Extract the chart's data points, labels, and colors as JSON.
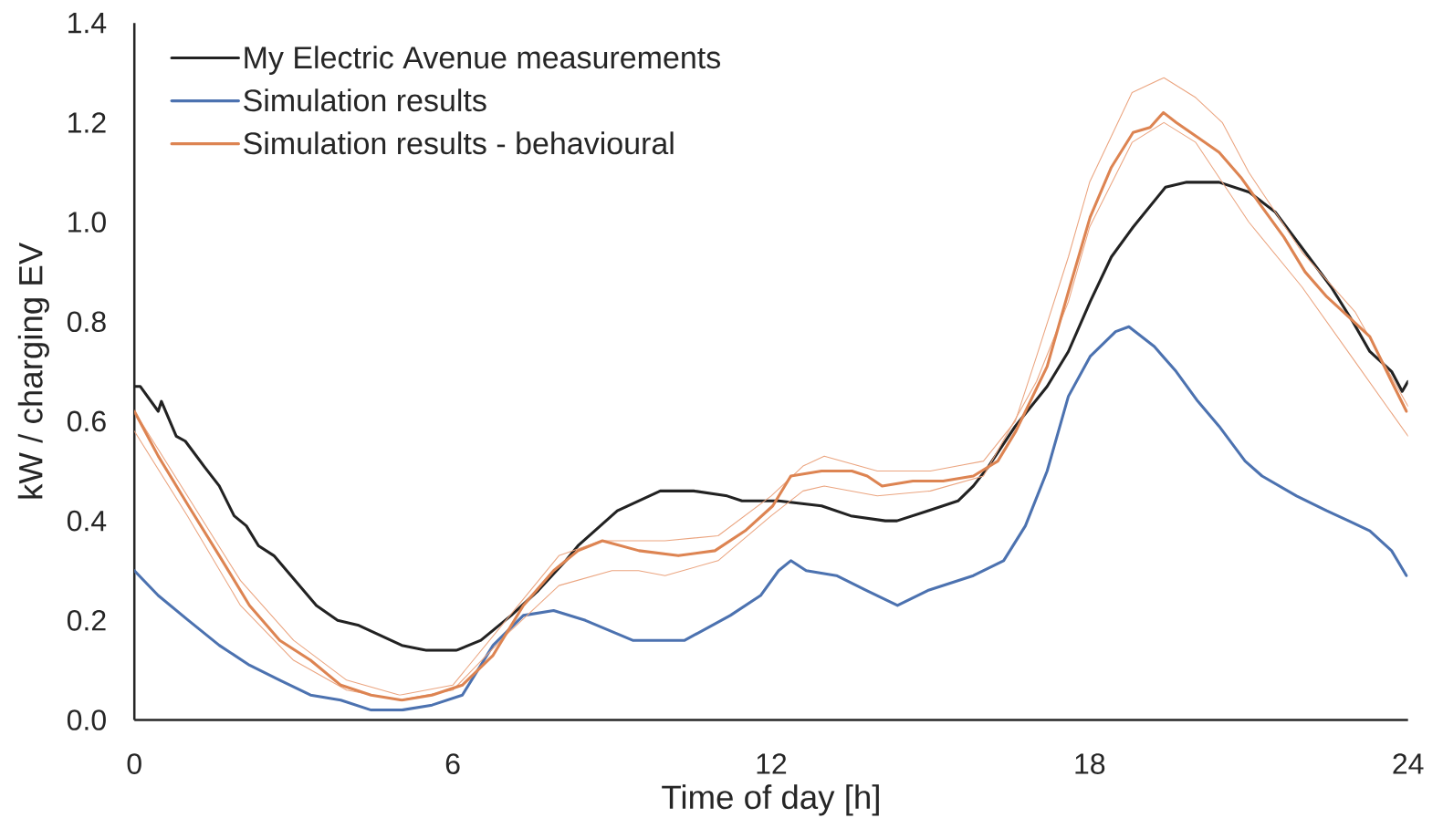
{
  "chart_data": {
    "type": "line",
    "xlabel": "Time of day [h]",
    "ylabel": "kW / charging EV",
    "xlim": [
      0,
      24
    ],
    "ylim": [
      0,
      1.4
    ],
    "xticks": [
      0,
      6,
      12,
      18,
      24
    ],
    "yticks": [
      {
        "value": 0,
        "label": "0.0"
      },
      0.2,
      0.4,
      0.6,
      0.8,
      {
        "value": 1,
        "label": "1.0"
      },
      1.2,
      1.4
    ],
    "legend": "top left",
    "marker": "none",
    "series": [
      {
        "name": "My Electric Avenue measurements",
        "color": "#222222",
        "x": [
          0,
          0.11,
          0.45,
          0.51,
          0.79,
          0.96,
          1.31,
          1.6,
          1.88,
          2.11,
          2.34,
          2.63,
          3.03,
          3.43,
          3.83,
          4.23,
          4.63,
          5.04,
          5.49,
          6.07,
          6.53,
          7.1,
          7.61,
          8.13,
          8.36,
          9.1,
          9.91,
          10.54,
          11.17,
          11.45,
          12.14,
          12.95,
          13.5,
          14.15,
          14.37,
          14.95,
          15.52,
          15.81,
          16.1,
          16.6,
          17.2,
          17.6,
          18.01,
          18.41,
          18.82,
          19.43,
          19.83,
          20.24,
          20.44,
          21.01,
          21.5,
          22.06,
          22.55,
          22.96,
          23.28,
          23.69,
          23.89,
          24
        ],
        "values": [
          0.67,
          0.67,
          0.62,
          0.64,
          0.57,
          0.56,
          0.51,
          0.47,
          0.41,
          0.39,
          0.35,
          0.33,
          0.28,
          0.23,
          0.2,
          0.19,
          0.17,
          0.15,
          0.14,
          0.14,
          0.16,
          0.21,
          0.26,
          0.32,
          0.35,
          0.42,
          0.46,
          0.46,
          0.45,
          0.44,
          0.44,
          0.43,
          0.41,
          0.4,
          0.4,
          0.42,
          0.44,
          0.47,
          0.51,
          0.59,
          0.67,
          0.74,
          0.84,
          0.93,
          0.99,
          1.07,
          1.08,
          1.08,
          1.08,
          1.06,
          1.02,
          0.94,
          0.87,
          0.8,
          0.74,
          0.7,
          0.66,
          0.68
        ]
      },
      {
        "name": "Simulation results",
        "color": "#4c72b0",
        "x": [
          0,
          0.45,
          1.02,
          1.6,
          2.17,
          2.74,
          3.32,
          3.89,
          4.46,
          5.04,
          5.61,
          6.18,
          6.76,
          7.33,
          7.9,
          8.5,
          9.39,
          10.37,
          11.23,
          11.8,
          12.14,
          12.37,
          12.66,
          13.23,
          13.8,
          14.38,
          14.95,
          15.81,
          16.38,
          16.79,
          17.2,
          17.6,
          18.01,
          18.49,
          18.74,
          19.22,
          19.63,
          20.04,
          20.44,
          20.93,
          21.25,
          21.9,
          22.47,
          22.88,
          23.28,
          23.69,
          23.97
        ],
        "values": [
          0.3,
          0.25,
          0.2,
          0.15,
          0.11,
          0.08,
          0.05,
          0.04,
          0.02,
          0.02,
          0.03,
          0.05,
          0.15,
          0.21,
          0.22,
          0.2,
          0.16,
          0.16,
          0.21,
          0.25,
          0.3,
          0.32,
          0.3,
          0.29,
          0.26,
          0.23,
          0.26,
          0.29,
          0.32,
          0.39,
          0.5,
          0.65,
          0.73,
          0.78,
          0.79,
          0.75,
          0.7,
          0.64,
          0.59,
          0.52,
          0.49,
          0.45,
          0.42,
          0.4,
          0.38,
          0.34,
          0.29
        ]
      },
      {
        "color": "#eba580",
        "x": [
          0,
          1,
          2,
          3,
          4,
          5,
          6,
          7,
          8,
          8.8,
          10,
          11,
          12,
          12.6,
          13,
          14,
          15,
          16,
          16.6,
          17,
          17.6,
          18,
          18.8,
          19.4,
          20,
          20.5,
          21,
          22,
          23,
          24
        ],
        "values": [
          0.62,
          0.45,
          0.28,
          0.16,
          0.08,
          0.05,
          0.07,
          0.2,
          0.33,
          0.36,
          0.36,
          0.37,
          0.45,
          0.51,
          0.53,
          0.5,
          0.5,
          0.52,
          0.6,
          0.73,
          0.93,
          1.08,
          1.26,
          1.29,
          1.25,
          1.2,
          1.1,
          0.94,
          0.82,
          0.63
        ]
      },
      {
        "color": "#eba580",
        "x": [
          0,
          1,
          2,
          3,
          4,
          5,
          6,
          7,
          8,
          9,
          9.5,
          10,
          11,
          12,
          12.6,
          13,
          14,
          15,
          16,
          17,
          17.6,
          18,
          18.8,
          19.4,
          20,
          21,
          22,
          23,
          24
        ],
        "values": [
          0.58,
          0.41,
          0.23,
          0.12,
          0.06,
          0.04,
          0.06,
          0.17,
          0.27,
          0.3,
          0.3,
          0.29,
          0.32,
          0.41,
          0.46,
          0.47,
          0.45,
          0.46,
          0.49,
          0.68,
          0.84,
          0.99,
          1.16,
          1.2,
          1.16,
          1.0,
          0.87,
          0.72,
          0.57
        ]
      },
      {
        "name": "Simulation results - behavioural",
        "color": "#dd8452",
        "x": [
          0,
          0.45,
          1.02,
          1.6,
          2.17,
          2.74,
          3.32,
          3.89,
          4.46,
          5.04,
          5.61,
          6.18,
          6.76,
          7.33,
          7.9,
          8.36,
          8.82,
          9.51,
          10.25,
          10.94,
          11.51,
          12.03,
          12.37,
          12.95,
          13.52,
          13.81,
          14.09,
          14.67,
          15.24,
          15.81,
          16.27,
          16.61,
          17.2,
          17.6,
          18.01,
          18.41,
          18.82,
          19.14,
          19.39,
          19.63,
          20.04,
          20.44,
          20.85,
          21.25,
          21.66,
          22.06,
          22.47,
          22.88,
          23.28,
          23.69,
          23.97
        ],
        "values": [
          0.62,
          0.53,
          0.43,
          0.33,
          0.23,
          0.16,
          0.12,
          0.07,
          0.05,
          0.04,
          0.05,
          0.07,
          0.13,
          0.23,
          0.3,
          0.34,
          0.36,
          0.34,
          0.33,
          0.34,
          0.38,
          0.43,
          0.49,
          0.5,
          0.5,
          0.49,
          0.47,
          0.48,
          0.48,
          0.49,
          0.52,
          0.58,
          0.71,
          0.86,
          1.01,
          1.11,
          1.18,
          1.19,
          1.22,
          1.2,
          1.17,
          1.14,
          1.09,
          1.03,
          0.97,
          0.9,
          0.85,
          0.81,
          0.77,
          0.68,
          0.62
        ]
      }
    ]
  }
}
